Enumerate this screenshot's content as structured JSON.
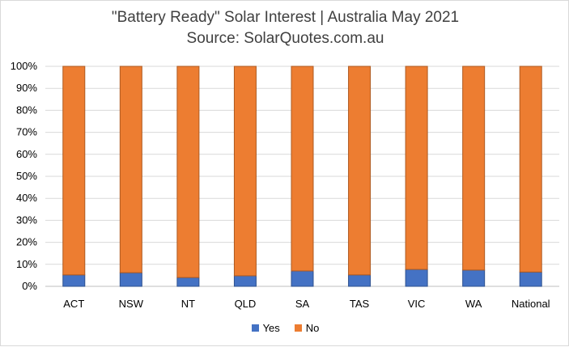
{
  "chart_data": {
    "type": "bar",
    "stacked": true,
    "title": "\"Battery Ready\" Solar Interest | Australia May 2021",
    "subtitle": "Source: SolarQuotes.com.au",
    "categories": [
      "ACT",
      "NSW",
      "NT",
      "QLD",
      "SA",
      "TAS",
      "VIC",
      "WA",
      "National"
    ],
    "series": [
      {
        "name": "Yes",
        "color": "#4472c4",
        "values": [
          5.2,
          6.2,
          4.0,
          4.8,
          7.0,
          5.2,
          7.7,
          7.4,
          6.5
        ]
      },
      {
        "name": "No",
        "color": "#ed7d31",
        "values": [
          94.8,
          93.8,
          96.0,
          95.2,
          93.0,
          94.8,
          92.3,
          92.6,
          93.5
        ]
      }
    ],
    "yticks": [
      "0%",
      "10%",
      "20%",
      "30%",
      "40%",
      "50%",
      "60%",
      "70%",
      "80%",
      "90%",
      "100%"
    ],
    "ylim": [
      0,
      100
    ],
    "grid": true,
    "legend_position": "bottom"
  }
}
